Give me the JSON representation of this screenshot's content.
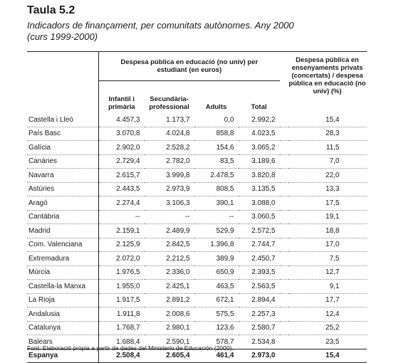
{
  "title": "Taula 5.2",
  "subtitle_line1": "Indicadors de finançament, per comunitats autònomes. Any 2000",
  "subtitle_line2": "(curs 1999-2000)",
  "header": {
    "group1": "Despesa pública en educació (no univ) per estudiant (en euros)",
    "group2": "Despesa pública en ensenyaments privats (concertats) / despesa pública en educació (no univ) (%)",
    "col1": "Infantil i primària",
    "col2": "Secundària-professional",
    "col3": "Adults",
    "col4": "Total"
  },
  "rows": [
    {
      "name": "Castella i Lleó",
      "c1": "4.457,3",
      "c2": "1.173,7",
      "c3": "0,0",
      "c4": "2.992,2",
      "c5": "15,4"
    },
    {
      "name": "País Basc",
      "c1": "3.070,8",
      "c2": "4.024,8",
      "c3": "858,8",
      "c4": "4.023,5",
      "c5": "28,3"
    },
    {
      "name": "Galícia",
      "c1": "2.902,0",
      "c2": "2.528,2",
      "c3": "154,6",
      "c4": "3.065,2",
      "c5": "11,5"
    },
    {
      "name": "Canàries",
      "c1": "2.729,4",
      "c2": "2.782,0",
      "c3": "83,5",
      "c4": "3.189,6",
      "c5": "7,0"
    },
    {
      "name": "Navarra",
      "c1": "2.615,7",
      "c2": "3.999,8",
      "c3": "2.478,5",
      "c4": "3.820,8",
      "c5": "22,0"
    },
    {
      "name": "Astúries",
      "c1": "2.443,5",
      "c2": "2.973,9",
      "c3": "808,5",
      "c4": "3.135,5",
      "c5": "13,3"
    },
    {
      "name": "Aragó",
      "c1": "2.274,4",
      "c2": "3.106,3",
      "c3": "390,1",
      "c4": "3.088,0",
      "c5": "17,5"
    },
    {
      "name": "Cantàbria",
      "c1": "--",
      "c2": "--",
      "c3": "--",
      "c4": "3.060,5",
      "c5": "19,1"
    },
    {
      "name": "Madrid",
      "c1": "2.159,1",
      "c2": "2.489,9",
      "c3": "529,9",
      "c4": "2.572,5",
      "c5": "18,8"
    },
    {
      "name": "Com. Valenciana",
      "c1": "2.125,9",
      "c2": "2.842,5",
      "c3": "1.396,8",
      "c4": "2.744,7",
      "c5": "17,0"
    },
    {
      "name": "Extremadura",
      "c1": "2.072,0",
      "c2": "2.212,5",
      "c3": "389,9",
      "c4": "2.450,7",
      "c5": "7,5"
    },
    {
      "name": "Múrcia",
      "c1": "1.976,5",
      "c2": "2.336,0",
      "c3": "650,9",
      "c4": "2.393,5",
      "c5": "12,7"
    },
    {
      "name": "Castella-la Manxa",
      "c1": "1.955,0",
      "c2": "2.425,1",
      "c3": "463,5",
      "c4": "2.563,5",
      "c5": "9,1"
    },
    {
      "name": "La Rioja",
      "c1": "1.917,5",
      "c2": "2.891,2",
      "c3": "672,1",
      "c4": "2.894,4",
      "c5": "17,7"
    },
    {
      "name": "Andalusia",
      "c1": "1.911,8",
      "c2": "2.008,6",
      "c3": "575,5",
      "c4": "2.257,3",
      "c5": "12,4"
    },
    {
      "name": "Catalunya",
      "c1": "1.768,7",
      "c2": "2.980,1",
      "c3": "123,6",
      "c4": "2.580,7",
      "c5": "25,2"
    },
    {
      "name": "Balears",
      "c1": "1.688,4",
      "c2": "2.590,1",
      "c3": "578,7",
      "c4": "2.534,8",
      "c5": "23,5"
    },
    {
      "name": "Espanya",
      "c1": "2.508,4",
      "c2": "2.605,4",
      "c3": "461,4",
      "c4": "2.973,0",
      "c5": "15,4"
    }
  ],
  "source": "Font: Elaboració pròpia a partir de dades del Ministerio de Educación (2000)."
}
